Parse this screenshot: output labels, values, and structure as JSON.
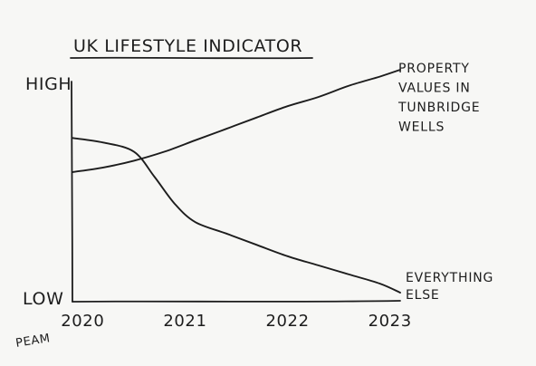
{
  "chart_data": {
    "type": "line",
    "title": "UK LIFESTYLE INDICATOR",
    "ylabel_high": "HIGH",
    "ylabel_low": "LOW",
    "x_ticks": [
      "2020",
      "2021",
      "2022",
      "2023"
    ],
    "xlim": [
      2019.9,
      2023.1
    ],
    "ylim": [
      0,
      100
    ],
    "grid": false,
    "series": [
      {
        "name": "PROPERTY VALUES IN TUNBRIDGE WELLS",
        "label_lines": [
          "PROPERTY",
          "VALUES IN",
          "TUNBRIDGE",
          "WELLS"
        ],
        "x": [
          2019.9,
          2020.2,
          2020.5,
          2020.8,
          2021.1,
          2021.4,
          2021.7,
          2022.0,
          2022.3,
          2022.6,
          2022.9,
          2023.1
        ],
        "y": [
          53,
          55,
          58,
          62,
          67,
          72,
          77,
          82,
          86,
          91,
          95,
          98
        ]
      },
      {
        "name": "EVERYTHING ELSE",
        "label_lines": [
          "EVERYTHING",
          "ELSE"
        ],
        "x": [
          2019.9,
          2020.2,
          2020.5,
          2020.7,
          2020.9,
          2021.1,
          2021.4,
          2021.7,
          2022.0,
          2022.3,
          2022.6,
          2022.9,
          2023.1
        ],
        "y": [
          68,
          66,
          62,
          51,
          39,
          31,
          26,
          21,
          16,
          12,
          8,
          4,
          0
        ]
      }
    ],
    "signature": "PEAM"
  }
}
